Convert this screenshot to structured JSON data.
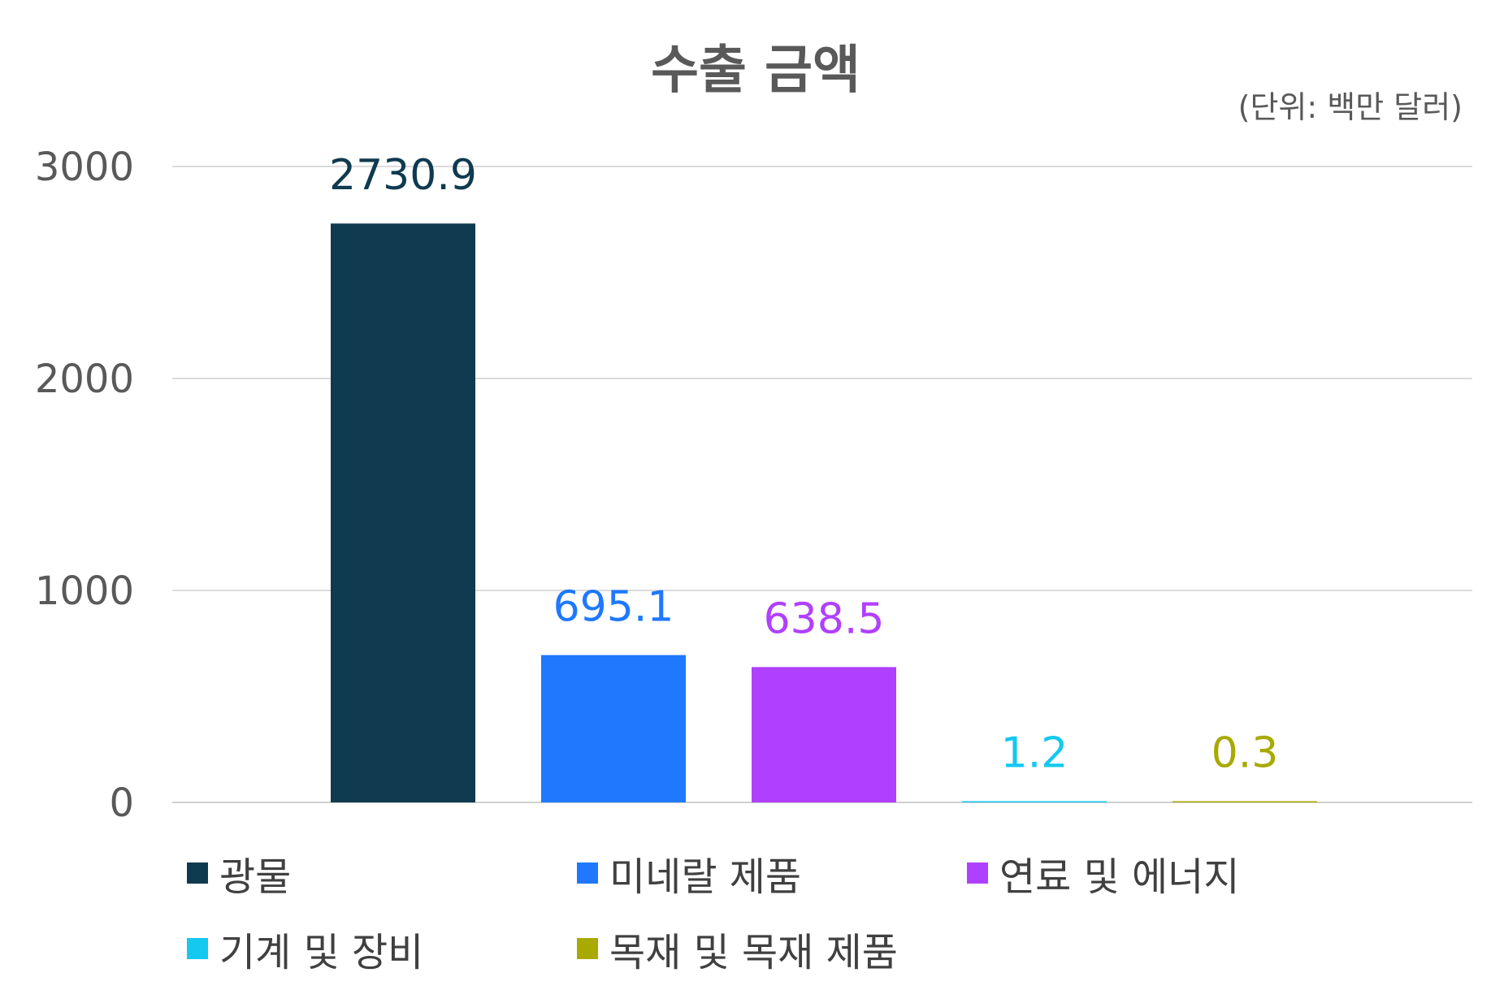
{
  "chart_data": {
    "type": "bar",
    "title": "수출 금액",
    "unit_note": "(단위: 백만 달러)",
    "categories": [
      "광물",
      "미네랄 제품",
      "연료 및 에너지",
      "기계 및 장비",
      "목재 및 목재 제품"
    ],
    "values": [
      2730.9,
      695.1,
      638.5,
      1.2,
      0.3
    ],
    "value_labels": [
      "2730.9",
      "695.1",
      "638.5",
      "1.2",
      "0.3"
    ],
    "colors": [
      "#0f3a4f",
      "#1f78ff",
      "#b040ff",
      "#14c8f0",
      "#a8aa00"
    ],
    "ylim": [
      0,
      3000
    ],
    "yticks": [
      "0",
      "1000",
      "2000",
      "3000"
    ],
    "xlabel": "",
    "ylabel": "",
    "grid": true,
    "legend_position": "bottom"
  }
}
